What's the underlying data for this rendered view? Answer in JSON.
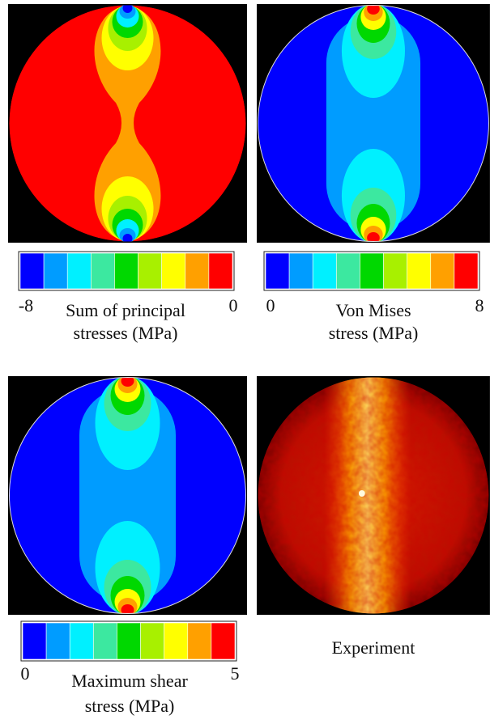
{
  "colorbar_colors": [
    "#0000ff",
    "#009cff",
    "#00f0ff",
    "#3ce8a0",
    "#00d800",
    "#a8f000",
    "#ffff00",
    "#ffa000",
    "#ff0000"
  ],
  "panels": [
    {
      "caption": [
        "Sum of principal",
        "stresses (MPa)"
      ],
      "colorbar": {
        "min": "-8",
        "max": "0"
      }
    },
    {
      "caption": [
        "Von Mises",
        "stress (MPa)"
      ],
      "colorbar": {
        "min": "0",
        "max": "8"
      }
    },
    {
      "caption": [
        "Maximum shear",
        "stress (MPa)"
      ],
      "colorbar": {
        "min": "0",
        "max": "5"
      }
    },
    {
      "caption": [
        "Experiment"
      ]
    }
  ]
}
